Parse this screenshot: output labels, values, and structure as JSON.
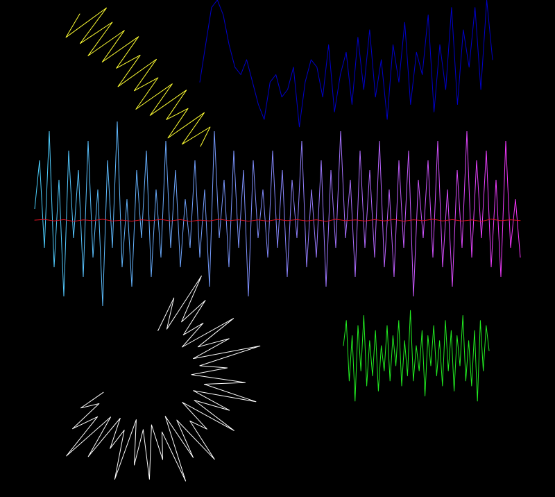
{
  "page": {
    "background": "#000000"
  },
  "chart_data": [
    {
      "type": "line",
      "name": "",
      "colors": [
        "#ffff33"
      ],
      "x": [
        0,
        0.04,
        0.08,
        0.12,
        0.16,
        0.2,
        0.24,
        0.28,
        0.32,
        0.36,
        0.4,
        0.44,
        0.48,
        0.52,
        0.56,
        0.6,
        0.64,
        0.68,
        0.72,
        0.76,
        0.8,
        0.84,
        0.88,
        0.92,
        0.96,
        1
      ],
      "y": [
        0.5,
        0.95,
        0.1,
        0.85,
        0.2,
        0.9,
        0.15,
        0.8,
        0.05,
        0.7,
        0.25,
        0.9,
        0.1,
        0.75,
        0.3,
        0.95,
        0.2,
        0.85,
        0.1,
        0.7,
        0.3,
        0.9,
        0.15,
        0.8,
        0.25,
        0.6
      ]
    },
    {
      "type": "line",
      "name": "",
      "colors": [
        "#0000cc"
      ],
      "x": [
        0,
        0.02,
        0.04,
        0.06,
        0.08,
        0.1,
        0.12,
        0.14,
        0.16,
        0.18,
        0.2,
        0.22,
        0.24,
        0.26,
        0.28,
        0.3,
        0.32,
        0.34,
        0.36,
        0.38,
        0.4,
        0.42,
        0.44,
        0.46,
        0.48,
        0.5,
        0.52,
        0.54,
        0.56,
        0.58,
        0.6,
        0.62,
        0.64,
        0.66,
        0.68,
        0.7,
        0.72,
        0.74,
        0.76,
        0.78,
        0.8,
        0.82,
        0.84,
        0.86,
        0.88,
        0.9,
        0.92,
        0.94,
        0.96,
        0.98,
        1
      ],
      "y": [
        0.45,
        0.7,
        0.95,
        1.0,
        0.9,
        0.7,
        0.55,
        0.5,
        0.6,
        0.45,
        0.3,
        0.2,
        0.45,
        0.5,
        0.35,
        0.4,
        0.55,
        0.15,
        0.45,
        0.6,
        0.55,
        0.35,
        0.7,
        0.25,
        0.5,
        0.65,
        0.3,
        0.75,
        0.4,
        0.8,
        0.35,
        0.6,
        0.2,
        0.7,
        0.45,
        0.85,
        0.3,
        0.65,
        0.5,
        0.9,
        0.25,
        0.7,
        0.4,
        0.95,
        0.3,
        0.8,
        0.55,
        0.95,
        0.4,
        1.0,
        0.6
      ]
    },
    {
      "type": "line",
      "name": "",
      "colors": [
        "#4dd2ff",
        "#8888ff",
        "#ff33ff"
      ],
      "x": [
        0,
        0.01,
        0.02,
        0.03,
        0.04,
        0.05,
        0.06,
        0.07,
        0.08,
        0.09,
        0.1,
        0.11,
        0.12,
        0.13,
        0.14,
        0.15,
        0.16,
        0.17,
        0.18,
        0.19,
        0.2,
        0.21,
        0.22,
        0.23,
        0.24,
        0.25,
        0.26,
        0.27,
        0.28,
        0.29,
        0.3,
        0.31,
        0.32,
        0.33,
        0.34,
        0.35,
        0.36,
        0.37,
        0.38,
        0.39,
        0.4,
        0.41,
        0.42,
        0.43,
        0.44,
        0.45,
        0.46,
        0.47,
        0.48,
        0.49,
        0.5,
        0.51,
        0.52,
        0.53,
        0.54,
        0.55,
        0.56,
        0.57,
        0.58,
        0.59,
        0.6,
        0.61,
        0.62,
        0.63,
        0.64,
        0.65,
        0.66,
        0.67,
        0.68,
        0.69,
        0.7,
        0.71,
        0.72,
        0.73,
        0.74,
        0.75,
        0.76,
        0.77,
        0.78,
        0.79,
        0.8,
        0.81,
        0.82,
        0.83,
        0.84,
        0.85,
        0.86,
        0.87,
        0.88,
        0.89,
        0.9,
        0.91,
        0.92,
        0.93,
        0.94,
        0.95,
        0.96,
        0.97,
        0.98,
        0.99,
        1
      ],
      "y": [
        0.1,
        0.6,
        -0.3,
        0.9,
        -0.5,
        0.4,
        -0.8,
        0.7,
        -0.2,
        0.5,
        -0.6,
        0.8,
        -0.4,
        0.3,
        -0.9,
        0.6,
        -0.3,
        1.0,
        -0.5,
        0.2,
        -0.7,
        0.5,
        -0.2,
        0.7,
        -0.6,
        0.3,
        -0.4,
        0.8,
        -0.3,
        0.5,
        -0.5,
        0.2,
        -0.3,
        0.6,
        -0.4,
        0.3,
        -0.7,
        0.9,
        -0.2,
        0.4,
        -0.5,
        0.7,
        -0.3,
        0.5,
        -0.8,
        0.6,
        -0.2,
        0.3,
        -0.4,
        0.7,
        -0.3,
        0.5,
        -0.6,
        0.4,
        -0.2,
        0.8,
        -0.5,
        0.3,
        -0.4,
        0.6,
        -0.7,
        0.5,
        -0.3,
        0.9,
        -0.2,
        0.4,
        -0.6,
        0.7,
        -0.3,
        0.5,
        -0.4,
        0.8,
        -0.5,
        0.3,
        -0.6,
        0.6,
        -0.3,
        0.7,
        -0.8,
        0.4,
        -0.2,
        0.6,
        -0.4,
        0.8,
        -0.5,
        0.3,
        -0.7,
        0.5,
        -0.3,
        0.9,
        -0.4,
        0.6,
        -0.2,
        0.7,
        -0.5,
        0.4,
        -0.6,
        0.8,
        -0.3,
        0.2,
        -0.4
      ]
    },
    {
      "type": "line",
      "name": "",
      "colors": [
        "#dd1122"
      ],
      "x": [
        0,
        0.02,
        0.04,
        0.06,
        0.08,
        0.1,
        0.12,
        0.14,
        0.16,
        0.18,
        0.2,
        0.22,
        0.24,
        0.26,
        0.28,
        0.3,
        0.32,
        0.34,
        0.36,
        0.38,
        0.4,
        0.42,
        0.44,
        0.46,
        0.48,
        0.5,
        0.52,
        0.54,
        0.56,
        0.58,
        0.6,
        0.62,
        0.64,
        0.66,
        0.68,
        0.7,
        0.72,
        0.74,
        0.76,
        0.78,
        0.8,
        0.82,
        0.84,
        0.86,
        0.88,
        0.9,
        0.92,
        0.94,
        0.96,
        0.98,
        1
      ],
      "y": [
        0.02,
        0.06,
        -0.03,
        0.05,
        -0.06,
        0.03,
        -0.02,
        0.07,
        -0.04,
        0.02,
        -0.05,
        0.04,
        -0.02,
        0.06,
        -0.03,
        0.05,
        -0.06,
        0.02,
        -0.03,
        0.07,
        -0.02,
        0.04,
        -0.05,
        0.03,
        -0.04,
        0.06,
        -0.02,
        0.05,
        -0.03,
        0.04,
        -0.06,
        0.07,
        -0.02,
        0.03,
        -0.04,
        0.05,
        -0.03,
        0.06,
        -0.05,
        0.04,
        -0.02,
        0.07,
        -0.03,
        0.05,
        -0.04,
        0.03,
        -0.06,
        0.08,
        -0.02,
        0.04,
        -0.01
      ]
    },
    {
      "type": "line",
      "name": "",
      "colors": [
        "#22ee22"
      ],
      "x": [
        0,
        0.02,
        0.04,
        0.06,
        0.08,
        0.1,
        0.12,
        0.14,
        0.16,
        0.18,
        0.2,
        0.22,
        0.24,
        0.26,
        0.28,
        0.3,
        0.32,
        0.34,
        0.36,
        0.38,
        0.4,
        0.42,
        0.44,
        0.46,
        0.48,
        0.5,
        0.52,
        0.54,
        0.56,
        0.58,
        0.6,
        0.62,
        0.64,
        0.66,
        0.68,
        0.7,
        0.72,
        0.74,
        0.76,
        0.78,
        0.8,
        0.82,
        0.84,
        0.86,
        0.88,
        0.9,
        0.92,
        0.94,
        0.96,
        0.98,
        1
      ],
      "y": [
        0.2,
        0.7,
        -0.5,
        0.4,
        -0.9,
        0.6,
        -0.3,
        0.8,
        -0.6,
        0.3,
        -0.4,
        0.5,
        -0.7,
        0.2,
        -0.3,
        0.6,
        -0.5,
        0.4,
        -0.2,
        0.7,
        -0.6,
        0.3,
        -0.4,
        0.9,
        -0.5,
        0.2,
        -0.3,
        0.5,
        -0.8,
        0.4,
        -0.2,
        0.6,
        -0.4,
        0.3,
        -0.6,
        0.7,
        -0.3,
        0.5,
        -0.7,
        0.4,
        -0.2,
        0.8,
        -0.5,
        0.3,
        -0.6,
        0.5,
        -0.9,
        0.7,
        -0.3,
        0.6,
        0.1
      ]
    },
    {
      "type": "line",
      "name": "",
      "colors": [
        "#ffffff"
      ],
      "x": [
        0,
        0.02,
        0.04,
        0.06,
        0.08,
        0.1,
        0.12,
        0.14,
        0.16,
        0.18,
        0.2,
        0.22,
        0.24,
        0.26,
        0.28,
        0.3,
        0.32,
        0.34,
        0.36,
        0.38,
        0.4,
        0.42,
        0.44,
        0.46,
        0.48,
        0.5,
        0.52,
        0.54,
        0.56,
        0.58,
        0.6,
        0.62,
        0.64,
        0.66,
        0.68,
        0.7,
        0.72,
        0.74,
        0.76,
        0.78,
        0.8,
        0.82,
        0.84,
        0.86,
        0.88,
        0.9,
        0.92,
        0.94,
        0.96,
        0.98,
        1
      ],
      "y": [
        0.2,
        0.6,
        0.25,
        0.95,
        0.4,
        0.75,
        0.3,
        0.55,
        0.2,
        0.85,
        0.35,
        0.7,
        0.25,
        1.0,
        0.3,
        0.6,
        0.2,
        0.8,
        0.35,
        0.95,
        0.25,
        0.7,
        0.3,
        0.85,
        0.2,
        0.6,
        0.4,
        0.9,
        0.3,
        0.75,
        0.2,
        0.95,
        0.35,
        0.65,
        0.25,
        0.85,
        0.3,
        0.7,
        0.2,
        0.9,
        0.35,
        0.6,
        0.25,
        0.8,
        0.3,
        0.95,
        0.4,
        0.7,
        0.3,
        0.5,
        0.2
      ]
    }
  ]
}
